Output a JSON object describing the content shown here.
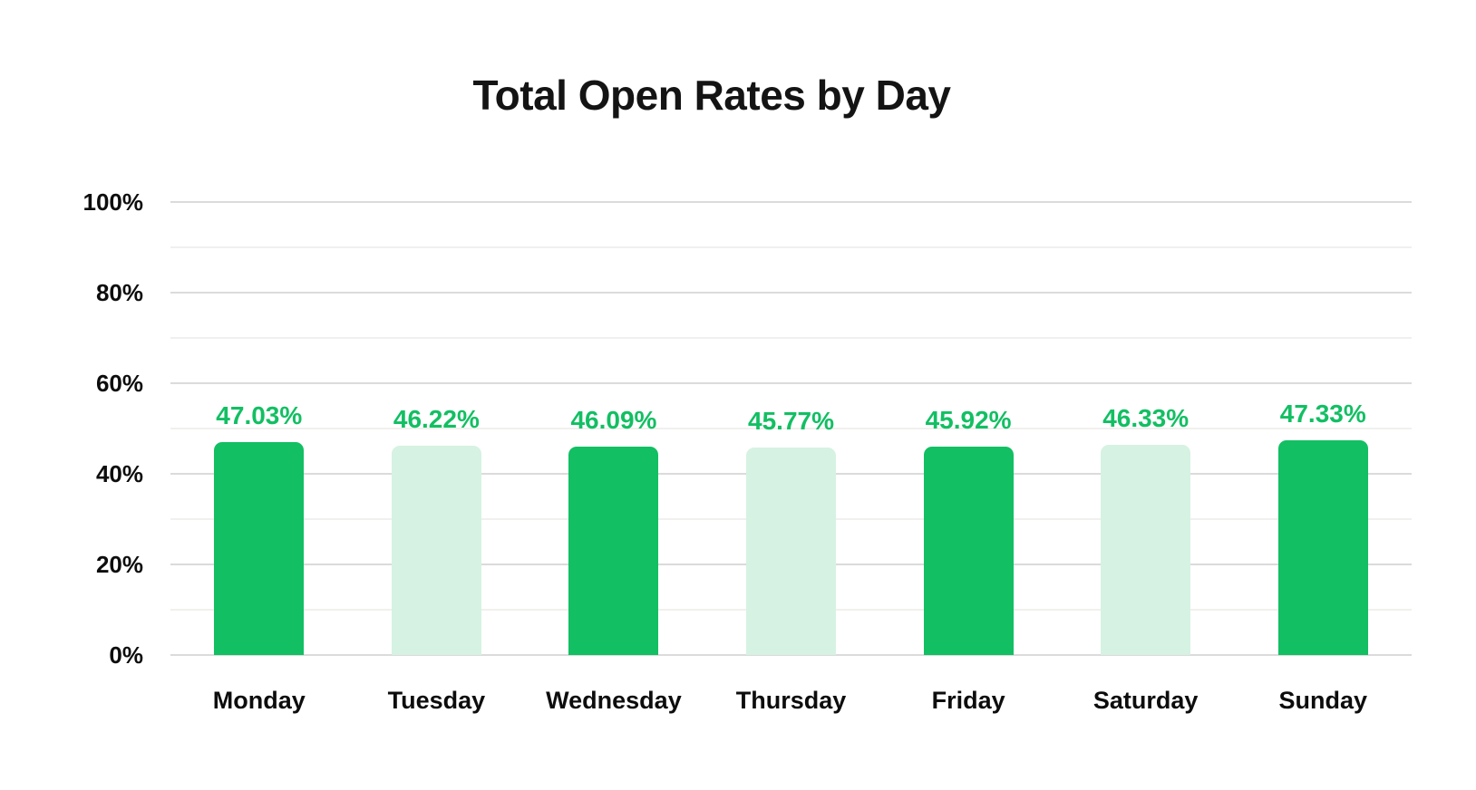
{
  "chart_data": {
    "type": "bar",
    "title": "Total Open Rates by Day",
    "categories": [
      "Monday",
      "Tuesday",
      "Wednesday",
      "Thursday",
      "Friday",
      "Saturday",
      "Sunday"
    ],
    "values": [
      47.03,
      46.22,
      46.09,
      45.77,
      45.92,
      46.33,
      47.33
    ],
    "value_labels": [
      "47.03%",
      "46.22%",
      "46.09%",
      "45.77%",
      "45.92%",
      "46.33%",
      "47.33%"
    ],
    "bar_styles": [
      "dark",
      "light",
      "dark",
      "light",
      "dark",
      "light",
      "dark"
    ],
    "xlabel": "",
    "ylabel": "",
    "ylim": [
      0,
      100
    ],
    "ytick_values": [
      0,
      20,
      40,
      60,
      80,
      100
    ],
    "ytick_labels": [
      "0%",
      "20%",
      "40%",
      "60%",
      "80%",
      "100%"
    ],
    "minor_grid_values": [
      10,
      30,
      50,
      70,
      90
    ],
    "grid": "horizontal",
    "legend_position": "none",
    "colors": {
      "bar_dark": "#12BF63",
      "bar_light": "#D6F2E2",
      "value_label": "#12BF63",
      "grid_major": "#DBDBDB",
      "grid_minor": "#F1F0EE",
      "text": "#0D0D0D",
      "title_text": "#141414",
      "background": "#FFFFFF"
    }
  }
}
